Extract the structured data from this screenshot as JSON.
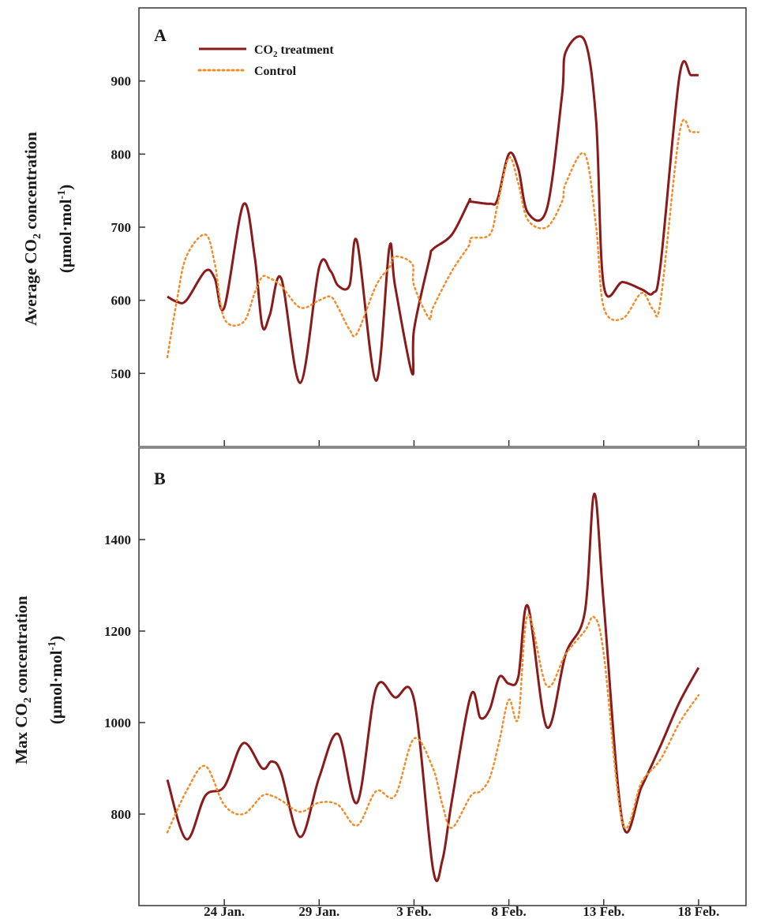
{
  "figure": {
    "x_tick_labels": [
      "24 Jan.",
      "29 Jan.",
      "3 Feb.",
      "8 Feb.",
      "13 Feb.",
      "18 Feb."
    ],
    "legend": {
      "treatment": {
        "pre": "CO",
        "sub": "2",
        "post": " treatment"
      },
      "control": "Control"
    }
  },
  "chart_data": [
    {
      "type": "line",
      "panel": "A",
      "ylabel_line1": {
        "pre": "Average CO",
        "sub": "2",
        "post": " concentration"
      },
      "ylabel_line2": {
        "pre": "(μmol·mol",
        "sup": "-1",
        "post": ")"
      },
      "ylim": [
        400,
        1000
      ],
      "yticks": [
        500,
        600,
        700,
        800,
        900
      ],
      "x_tick_values": [
        3,
        8,
        13,
        18,
        23,
        28
      ],
      "x_tick_labels": [
        "24 Jan.",
        "29 Jan.",
        "3 Feb.",
        "8 Feb.",
        "13 Feb.",
        "18 Feb."
      ],
      "xlim": [
        -1.5,
        30.5
      ],
      "grid": false,
      "legend_position": "top-left",
      "series": [
        {
          "key": "treatment",
          "style": "solid",
          "color": "#8b1a1a",
          "x": [
            0,
            0.5,
            1,
            2,
            2.5,
            3,
            4,
            4.6,
            5,
            5.4,
            6,
            7,
            8,
            8.6,
            9,
            9.6,
            10,
            11,
            11.7,
            12,
            12.9,
            13,
            13.8,
            14,
            15,
            15.9,
            16,
            17,
            17.4,
            18,
            18.5,
            19,
            20,
            20.8,
            21,
            22,
            22.6,
            23,
            24,
            25,
            25.6,
            26,
            27,
            27.6,
            28
          ],
          "values": [
            605,
            598,
            600,
            640,
            630,
            590,
            731,
            660,
            565,
            580,
            630,
            487,
            645,
            640,
            620,
            620,
            680,
            490,
            672,
            620,
            500,
            560,
            655,
            670,
            690,
            735,
            735,
            732,
            738,
            800,
            780,
            720,
            725,
            880,
            940,
            955,
            845,
            620,
            625,
            615,
            610,
            650,
            908,
            908,
            908
          ]
        },
        {
          "key": "control",
          "style": "dotted",
          "color": "#f28c28",
          "x": [
            0,
            0.5,
            1,
            2,
            2.5,
            3,
            4,
            4.6,
            5,
            5.4,
            6,
            7,
            8,
            8.6,
            9,
            9.6,
            10,
            11,
            11.7,
            12,
            12.9,
            13,
            13.8,
            14,
            15,
            15.9,
            16,
            17,
            17.4,
            18,
            18.5,
            19,
            20,
            20.8,
            21,
            22,
            22.6,
            23,
            24,
            25,
            25.6,
            26,
            27,
            27.6,
            28
          ],
          "values": [
            522,
            600,
            660,
            690,
            650,
            575,
            570,
            610,
            632,
            630,
            620,
            590,
            600,
            605,
            590,
            560,
            555,
            620,
            645,
            660,
            650,
            620,
            575,
            590,
            640,
            675,
            685,
            690,
            730,
            795,
            760,
            710,
            700,
            735,
            760,
            800,
            700,
            590,
            575,
            610,
            588,
            600,
            830,
            830,
            830
          ]
        }
      ]
    },
    {
      "type": "line",
      "panel": "B",
      "ylabel_line1": {
        "pre": "Max CO",
        "sub": "2",
        "post": " concentration"
      },
      "ylabel_line2": {
        "pre": "(μmol·mol",
        "sup": "-1",
        "post": ")"
      },
      "ylim": [
        600,
        1600
      ],
      "yticks": [
        800,
        1000,
        1200,
        1400
      ],
      "x_tick_values": [
        3,
        8,
        13,
        18,
        23,
        28
      ],
      "x_tick_labels": [
        "24 Jan.",
        "29 Jan.",
        "3 Feb.",
        "8 Feb.",
        "13 Feb.",
        "18 Feb."
      ],
      "xlim": [
        -1.5,
        30.5
      ],
      "grid": false,
      "legend_position": "none",
      "series": [
        {
          "key": "treatment",
          "style": "solid",
          "color": "#8b1a1a",
          "x": [
            0,
            1,
            2,
            3,
            4,
            5,
            5.5,
            6,
            7,
            8,
            9,
            10,
            11,
            12,
            13,
            14,
            14.5,
            15,
            16,
            16.5,
            17,
            17.5,
            18,
            18.5,
            19,
            20,
            21,
            22,
            22.5,
            23,
            24,
            25,
            26,
            27,
            28
          ],
          "values": [
            875,
            745,
            840,
            860,
            955,
            900,
            915,
            890,
            750,
            880,
            975,
            825,
            1075,
            1055,
            1050,
            680,
            700,
            830,
            1060,
            1010,
            1030,
            1100,
            1085,
            1100,
            1255,
            990,
            1150,
            1240,
            1500,
            1260,
            780,
            860,
            950,
            1045,
            1120
          ]
        },
        {
          "key": "control",
          "style": "dotted",
          "color": "#f28c28",
          "x": [
            0,
            1,
            2,
            3,
            4,
            5,
            5.5,
            6,
            7,
            8,
            9,
            10,
            11,
            12,
            13,
            14,
            14.5,
            15,
            16,
            16.5,
            17,
            17.5,
            18,
            18.5,
            19,
            20,
            21,
            22,
            22.5,
            23,
            24,
            25,
            26,
            27,
            28
          ],
          "values": [
            760,
            850,
            905,
            820,
            800,
            840,
            840,
            830,
            805,
            825,
            820,
            775,
            850,
            840,
            965,
            900,
            820,
            770,
            840,
            850,
            880,
            960,
            1050,
            1010,
            1235,
            1080,
            1150,
            1200,
            1230,
            1150,
            780,
            870,
            920,
            1000,
            1060
          ]
        }
      ]
    }
  ]
}
